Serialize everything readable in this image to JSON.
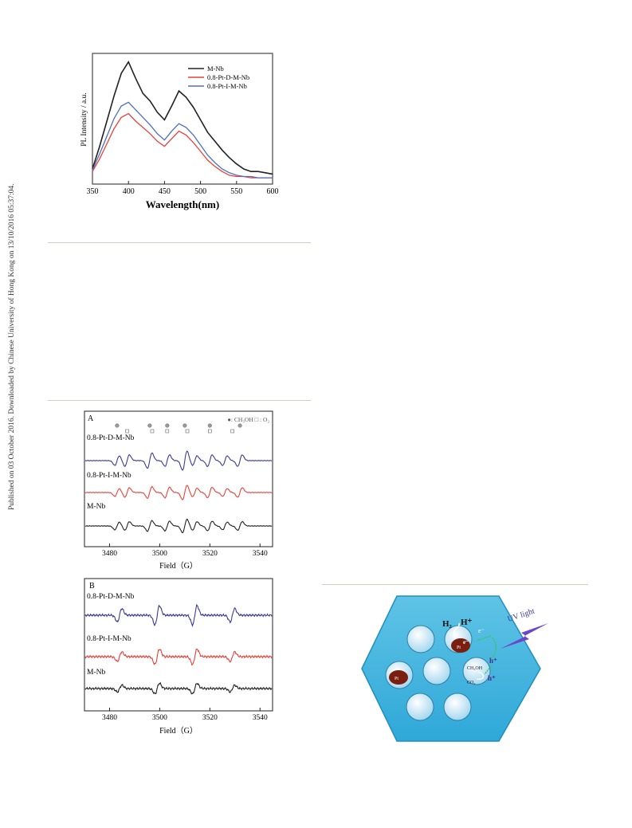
{
  "side_note": "Published on 03 October 2016. Downloaded by Chinese University of Hong Kong on 13/10/2016 05:37:04.",
  "colors": {
    "black": "#222222",
    "red": "#e8413a",
    "blue": "#4e6fbf",
    "navy": "#3b3a9a"
  },
  "chart_data": [
    {
      "type": "line",
      "title": "",
      "xlabel": "Wavelength(nm)",
      "ylabel": "PL Intensity / a.u.",
      "xlim": [
        350,
        600
      ],
      "xticks": [
        "350",
        "400",
        "450",
        "500",
        "550",
        "600"
      ],
      "legend_position": "top-right",
      "grid": false,
      "series": [
        {
          "name": "M-Nb",
          "color": "#222222",
          "x": [
            350,
            360,
            370,
            380,
            390,
            400,
            410,
            420,
            430,
            440,
            450,
            460,
            470,
            480,
            490,
            500,
            510,
            520,
            530,
            540,
            550,
            560,
            570,
            580,
            590,
            600
          ],
          "y": [
            0.12,
            0.3,
            0.5,
            0.7,
            0.88,
            0.97,
            0.84,
            0.72,
            0.66,
            0.57,
            0.51,
            0.62,
            0.74,
            0.69,
            0.61,
            0.51,
            0.41,
            0.34,
            0.27,
            0.21,
            0.16,
            0.12,
            0.1,
            0.1,
            0.09,
            0.08
          ]
        },
        {
          "name": "0.8-Pt-D-M-Nb",
          "color": "#e8413a",
          "x": [
            350,
            360,
            370,
            380,
            390,
            400,
            410,
            420,
            430,
            440,
            450,
            460,
            470,
            480,
            490,
            500,
            510,
            520,
            530,
            540,
            550,
            560,
            570,
            580,
            590,
            600
          ],
          "y": [
            0.1,
            0.2,
            0.32,
            0.44,
            0.53,
            0.56,
            0.5,
            0.45,
            0.4,
            0.34,
            0.3,
            0.36,
            0.42,
            0.39,
            0.33,
            0.26,
            0.19,
            0.14,
            0.1,
            0.07,
            0.06,
            0.06,
            0.05,
            0.05,
            0.05,
            0.05
          ]
        },
        {
          "name": "0.8-Pt-I-M-Nb",
          "color": "#4e6fbf",
          "x": [
            350,
            360,
            370,
            380,
            390,
            400,
            410,
            420,
            430,
            440,
            450,
            460,
            470,
            480,
            490,
            500,
            510,
            520,
            530,
            540,
            550,
            560,
            570,
            580,
            590,
            600
          ],
          "y": [
            0.11,
            0.24,
            0.38,
            0.52,
            0.62,
            0.65,
            0.59,
            0.53,
            0.47,
            0.4,
            0.35,
            0.42,
            0.48,
            0.45,
            0.39,
            0.31,
            0.23,
            0.17,
            0.12,
            0.09,
            0.07,
            0.06,
            0.06,
            0.05,
            0.05,
            0.05
          ]
        }
      ]
    },
    {
      "type": "line",
      "panel_label": "A",
      "xlabel": "Field（G）",
      "ylabel": "",
      "xlim": [
        3470,
        3545
      ],
      "xticks": [
        "3480",
        "3500",
        "3520",
        "3540"
      ],
      "legend_text": "●: CH₃OH □ : O₂",
      "circle_markers_x": [
        3483,
        3496,
        3503,
        3510,
        3520,
        3532
      ],
      "square_markers_x": [
        3487,
        3497,
        3503,
        3511,
        3520,
        3529
      ],
      "series": [
        {
          "name": "0.8-Pt-D-M-Nb",
          "color": "#3b3a9a",
          "peaks": [
            [
              3483,
              0.5
            ],
            [
              3487,
              0.6
            ],
            [
              3496,
              0.8
            ],
            [
              3503,
              0.6
            ],
            [
              3510,
              1.0
            ],
            [
              3514,
              0.5
            ],
            [
              3520,
              0.6
            ],
            [
              3526,
              0.5
            ],
            [
              3532,
              0.6
            ]
          ]
        },
        {
          "name": "0.8-Pt-I-M-Nb",
          "color": "#e8413a",
          "peaks": [
            [
              3483,
              0.4
            ],
            [
              3487,
              0.5
            ],
            [
              3496,
              0.6
            ],
            [
              3503,
              0.55
            ],
            [
              3510,
              0.75
            ],
            [
              3514,
              0.45
            ],
            [
              3520,
              0.55
            ],
            [
              3526,
              0.4
            ],
            [
              3532,
              0.5
            ]
          ]
        },
        {
          "name": "M-Nb",
          "color": "#222222",
          "peaks": [
            [
              3483,
              0.4
            ],
            [
              3487,
              0.45
            ],
            [
              3496,
              0.55
            ],
            [
              3503,
              0.5
            ],
            [
              3510,
              0.7
            ],
            [
              3514,
              0.45
            ],
            [
              3520,
              0.5
            ],
            [
              3526,
              0.4
            ],
            [
              3532,
              0.45
            ]
          ]
        }
      ]
    },
    {
      "type": "line",
      "panel_label": "B",
      "xlabel": "Field（G）",
      "ylabel": "",
      "xlim": [
        3470,
        3545
      ],
      "xticks": [
        "3480",
        "3500",
        "3520",
        "3540"
      ],
      "series": [
        {
          "name": "0.8-Pt-D-M-Nb",
          "color": "#3b3a9a",
          "peaks": [
            [
              3484,
              0.7
            ],
            [
              3499,
              1.0
            ],
            [
              3514,
              1.0
            ],
            [
              3529,
              0.7
            ]
          ]
        },
        {
          "name": "0.8-Pt-I-M-Nb",
          "color": "#e8413a",
          "peaks": [
            [
              3484,
              0.5
            ],
            [
              3499,
              0.8
            ],
            [
              3514,
              0.8
            ],
            [
              3529,
              0.5
            ]
          ]
        },
        {
          "name": "M-Nb",
          "color": "#222222",
          "peaks": [
            [
              3484,
              0.35
            ],
            [
              3499,
              0.55
            ],
            [
              3514,
              0.55
            ],
            [
              3529,
              0.35
            ]
          ]
        }
      ]
    }
  ],
  "scheme": {
    "labels": {
      "h2": "H₂",
      "hplus": "H⁺",
      "uv": "UV light",
      "e1": "e⁻",
      "pt_e": "Pt",
      "pt_e_sup": "e⁻",
      "hole1": "h⁺",
      "ch3oh": "CH₃OH",
      "co2": "CO₂",
      "hole2": "h⁺",
      "pt2": "Pt"
    }
  }
}
